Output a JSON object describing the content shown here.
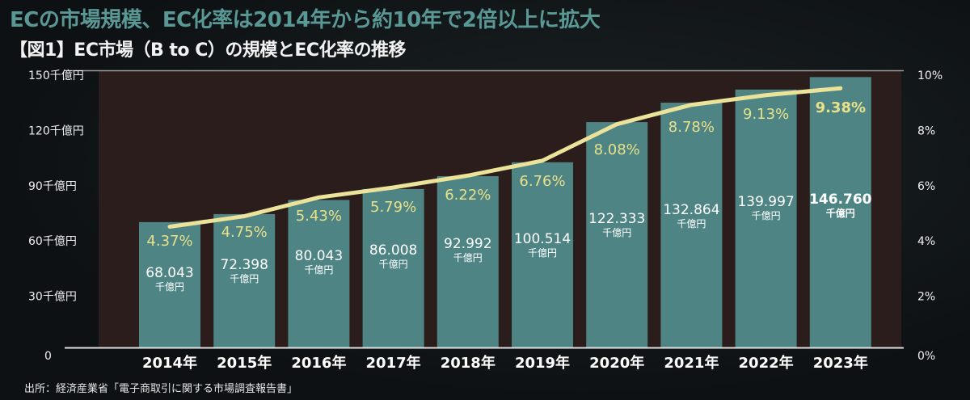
{
  "header": {
    "title": "ECの市場規模、EC化率は2014年から約10年で2倍以上に拡大",
    "subtitle": "【図1】EC市場（B to C）の規模とEC化率の推移"
  },
  "source": "出所：経済産業省「電子商取引に関する市場調査報告書」",
  "colors": {
    "bar": "#4e8584",
    "plot_bg": "#2a1d1c",
    "line": "#ece39a",
    "pct_label": "#e8e08a",
    "title": "#5a9896"
  },
  "chart_data": {
    "type": "bar+line",
    "categories": [
      "2014年",
      "2015年",
      "2016年",
      "2017年",
      "2018年",
      "2019年",
      "2020年",
      "2021年",
      "2022年",
      "2023年"
    ],
    "series": [
      {
        "type": "bar",
        "axis": "left",
        "values": [
          68.043,
          72.398,
          80.043,
          86.008,
          92.992,
          100.514,
          122.333,
          132.864,
          139.997,
          146.76
        ],
        "labels": [
          "68.043",
          "72.398",
          "80.043",
          "86.008",
          "92.992",
          "100.514",
          "122.333",
          "132.864",
          "139.997",
          "146.760"
        ],
        "unit_label": "千億円"
      },
      {
        "type": "line",
        "axis": "right",
        "values": [
          4.37,
          4.75,
          5.43,
          5.79,
          6.22,
          6.76,
          8.08,
          8.78,
          9.13,
          9.38
        ],
        "labels": [
          "4.37%",
          "4.75%",
          "5.43%",
          "5.79%",
          "6.22%",
          "6.76%",
          "8.08%",
          "8.78%",
          "9.13%",
          "9.38%"
        ]
      }
    ],
    "left_axis": {
      "range": [
        0,
        150
      ],
      "ticks": [
        0,
        30,
        60,
        90,
        120,
        150
      ],
      "tick_labels": [
        "0",
        "30千億円",
        "60千億円",
        "90千億円",
        "120千億円",
        "150千億円"
      ]
    },
    "right_axis": {
      "range": [
        0,
        10
      ],
      "ticks": [
        0,
        2,
        4,
        6,
        8,
        10
      ],
      "tick_labels": [
        "0%",
        "2%",
        "4%",
        "6%",
        "8%",
        "10%"
      ]
    },
    "grid": false,
    "legend": "none"
  }
}
